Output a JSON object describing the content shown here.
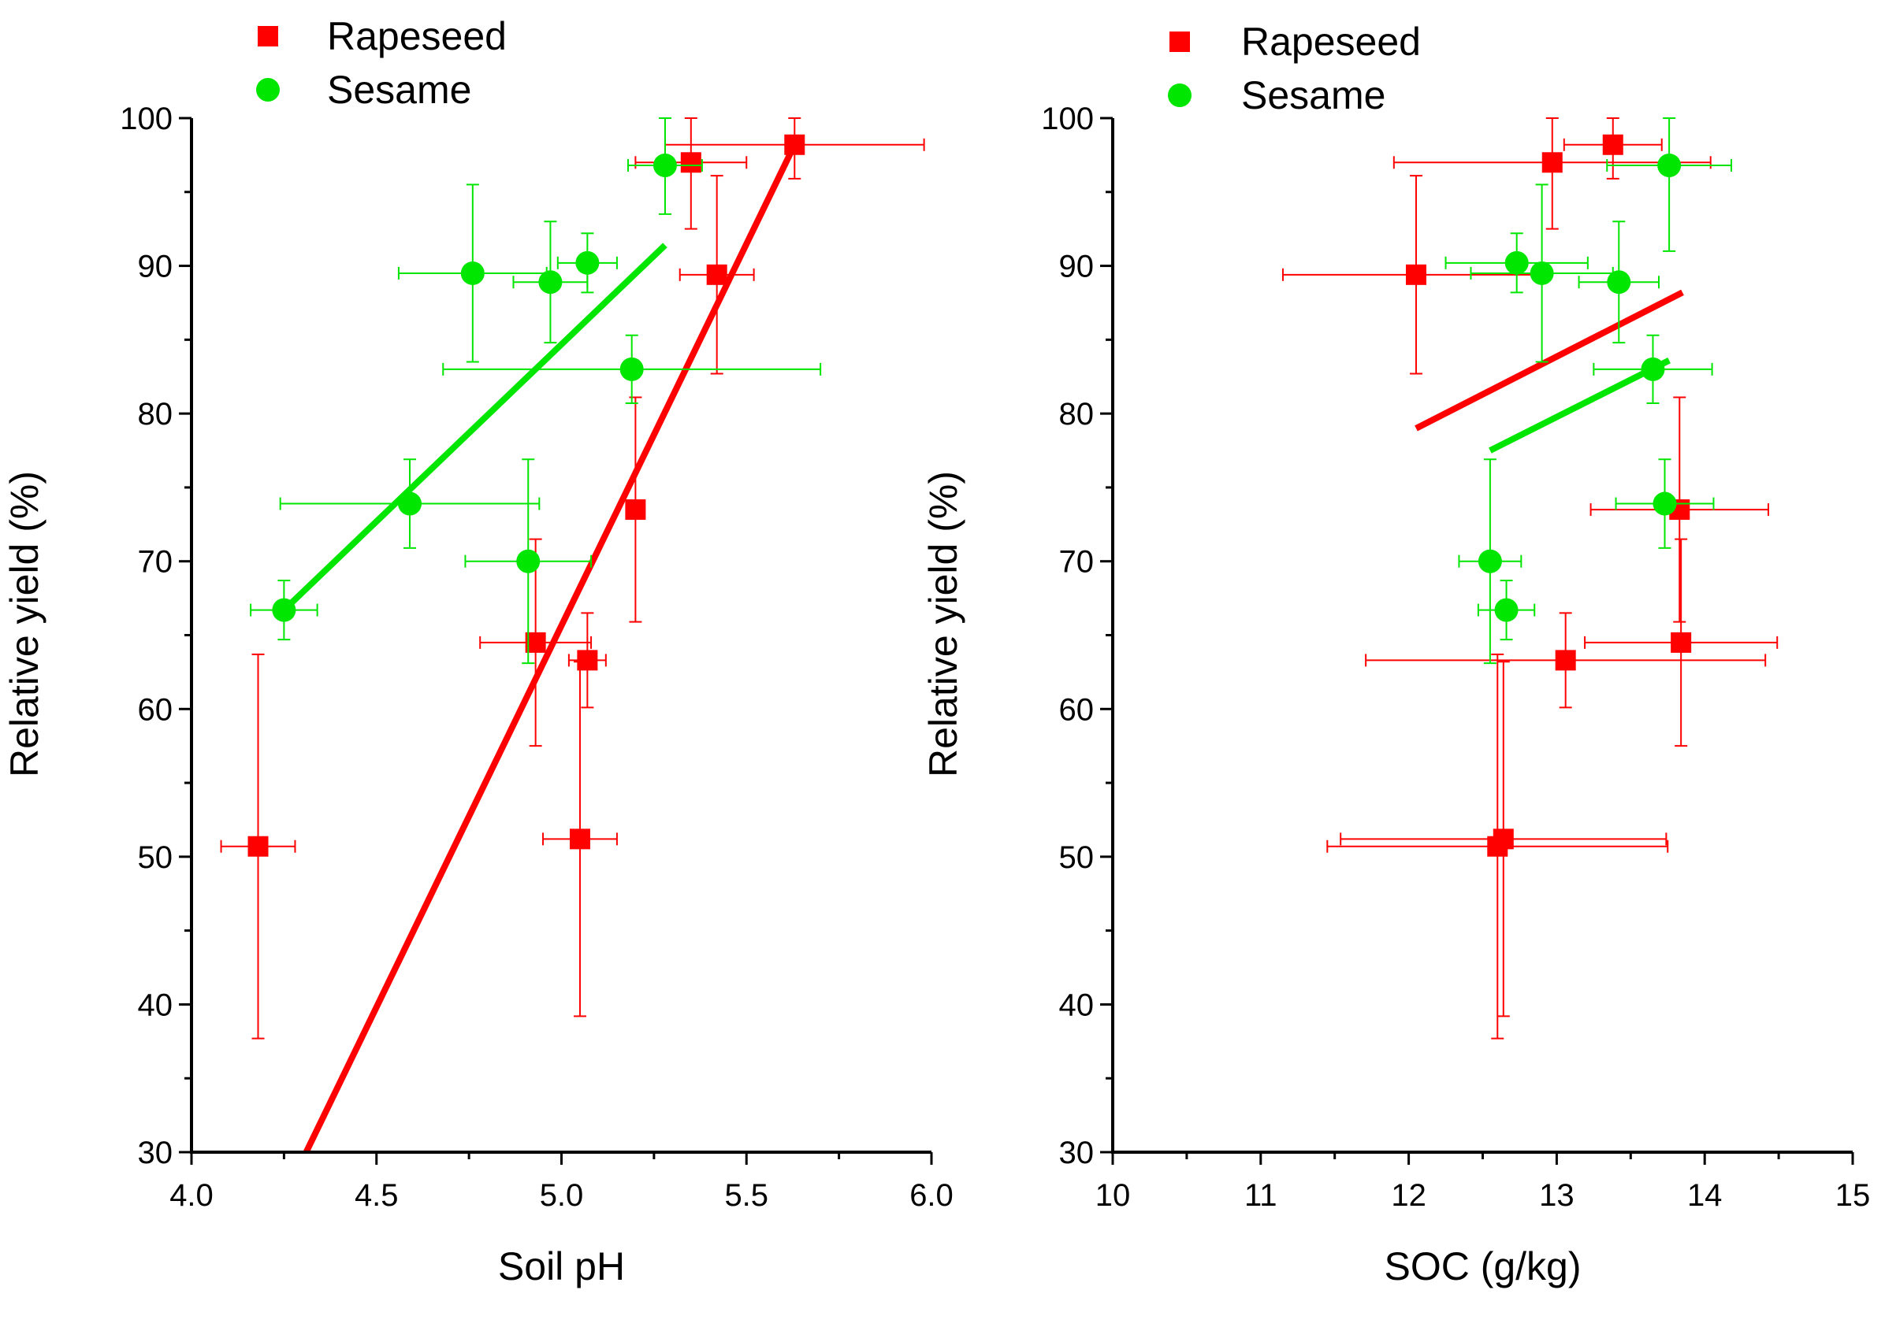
{
  "colors": {
    "rapeseed": "#ff0000",
    "sesame": "#00e600",
    "axis": "#000000"
  },
  "chart_data": [
    {
      "type": "scatter",
      "xlabel": "Soil pH",
      "ylabel": "Relative yield (%)",
      "xlim": [
        4.0,
        6.0
      ],
      "ylim": [
        30,
        100
      ],
      "xticks": [
        "4.0",
        "4.5",
        "5.0",
        "5.5",
        "6.0"
      ],
      "yticks": [
        "30",
        "40",
        "50",
        "60",
        "70",
        "80",
        "90",
        "100"
      ],
      "legend": {
        "placement": "top-left",
        "entries": [
          "Rapeseed",
          "Sesame"
        ]
      },
      "series": [
        {
          "name": "Rapeseed",
          "marker": "square",
          "color": "#ff0000",
          "points": [
            {
              "x": 4.18,
              "y": 50.7,
              "xerr": 0.1,
              "yerr": 13.0
            },
            {
              "x": 4.93,
              "y": 64.5,
              "xerr": 0.15,
              "yerr": 7.0
            },
            {
              "x": 5.05,
              "y": 51.2,
              "xerr": 0.1,
              "yerr": 12.0
            },
            {
              "x": 5.07,
              "y": 63.3,
              "xerr": 0.05,
              "yerr": 3.2
            },
            {
              "x": 5.2,
              "y": 73.5,
              "xerr": 0.0,
              "yerr": 7.6
            },
            {
              "x": 5.35,
              "y": 97.0,
              "xerr": 0.15,
              "yerr": 4.5
            },
            {
              "x": 5.42,
              "y": 89.4,
              "xerr": 0.1,
              "yerr": 6.7
            },
            {
              "x": 5.63,
              "y": 98.2,
              "xerr": 0.35,
              "yerr": 2.3
            }
          ],
          "fit": [
            [
              4.31,
              30.0
            ],
            [
              5.63,
              98.2
            ]
          ]
        },
        {
          "name": "Sesame",
          "marker": "circle",
          "color": "#00e600",
          "points": [
            {
              "x": 4.25,
              "y": 66.7,
              "xerr": 0.09,
              "yerr": 2.0
            },
            {
              "x": 4.59,
              "y": 73.9,
              "xerr": 0.35,
              "yerr": 3.0
            },
            {
              "x": 4.76,
              "y": 89.5,
              "xerr": 0.2,
              "yerr": 6.0
            },
            {
              "x": 4.91,
              "y": 70.0,
              "xerr": 0.17,
              "yerr": 6.9
            },
            {
              "x": 4.97,
              "y": 88.9,
              "xerr": 0.1,
              "yerr": 4.1
            },
            {
              "x": 5.07,
              "y": 90.2,
              "xerr": 0.08,
              "yerr": 2.0
            },
            {
              "x": 5.19,
              "y": 83.0,
              "xerr": 0.51,
              "yerr": 2.3
            },
            {
              "x": 5.28,
              "y": 96.8,
              "xerr": 0.1,
              "yerr": 3.3
            }
          ],
          "fit": [
            [
              4.25,
              66.7
            ],
            [
              5.28,
              91.4
            ]
          ]
        }
      ]
    },
    {
      "type": "scatter",
      "xlabel": "SOC (g/kg)",
      "ylabel": "Relative yield (%)",
      "xlim": [
        10,
        15
      ],
      "ylim": [
        30,
        100
      ],
      "xticks": [
        "10",
        "11",
        "12",
        "13",
        "14",
        "15"
      ],
      "yticks": [
        "30",
        "40",
        "50",
        "60",
        "70",
        "80",
        "90",
        "100"
      ],
      "legend": {
        "placement": "top-left",
        "entries": [
          "Rapeseed",
          "Sesame"
        ]
      },
      "series": [
        {
          "name": "Rapeseed",
          "marker": "square",
          "color": "#ff0000",
          "points": [
            {
              "x": 12.6,
              "y": 50.7,
              "xerr": 1.15,
              "yerr": 13.0
            },
            {
              "x": 12.64,
              "y": 51.2,
              "xerr": 1.1,
              "yerr": 12.0
            },
            {
              "x": 13.06,
              "y": 63.3,
              "xerr": 1.35,
              "yerr": 3.2
            },
            {
              "x": 13.84,
              "y": 64.5,
              "xerr": 0.65,
              "yerr": 7.0
            },
            {
              "x": 13.83,
              "y": 73.5,
              "xerr": 0.6,
              "yerr": 7.6
            },
            {
              "x": 12.05,
              "y": 89.4,
              "xerr": 0.9,
              "yerr": 6.7
            },
            {
              "x": 12.97,
              "y": 97.0,
              "xerr": 1.07,
              "yerr": 4.5
            },
            {
              "x": 13.38,
              "y": 98.2,
              "xerr": 0.33,
              "yerr": 2.3
            }
          ],
          "fit": [
            [
              12.05,
              79.0
            ],
            [
              13.85,
              88.2
            ]
          ]
        },
        {
          "name": "Sesame",
          "marker": "circle",
          "color": "#00e600",
          "points": [
            {
              "x": 12.55,
              "y": 70.0,
              "xerr": 0.21,
              "yerr": 6.9
            },
            {
              "x": 12.66,
              "y": 66.7,
              "xerr": 0.19,
              "yerr": 2.0
            },
            {
              "x": 13.73,
              "y": 73.9,
              "xerr": 0.33,
              "yerr": 3.0
            },
            {
              "x": 13.65,
              "y": 83.0,
              "xerr": 0.4,
              "yerr": 2.3
            },
            {
              "x": 12.73,
              "y": 90.2,
              "xerr": 0.48,
              "yerr": 2.0
            },
            {
              "x": 12.9,
              "y": 89.5,
              "xerr": 0.48,
              "yerr": 6.0
            },
            {
              "x": 13.42,
              "y": 88.9,
              "xerr": 0.27,
              "yerr": 4.1
            },
            {
              "x": 13.76,
              "y": 96.8,
              "xerr": 0.42,
              "yerr": 5.8
            }
          ],
          "fit": [
            [
              12.55,
              77.5
            ],
            [
              13.76,
              83.6
            ]
          ]
        }
      ]
    }
  ]
}
